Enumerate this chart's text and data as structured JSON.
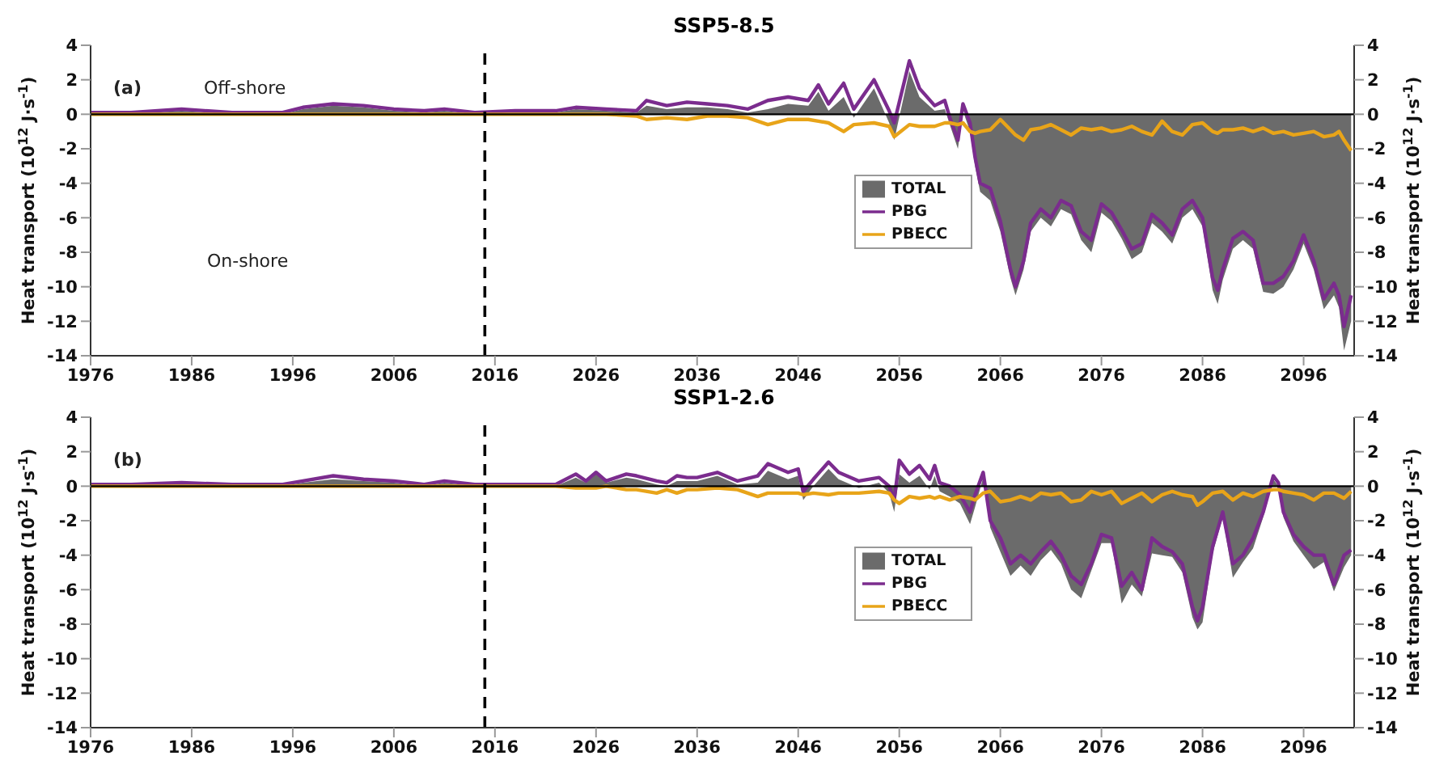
{
  "chart_data": [
    {
      "type": "line",
      "title": "SSP5-8.5",
      "ylabel": "Heat transport (10$^{12}$ J·s$^{-1}$)",
      "y2label": "Heat transport (10$^{12}$ J·s$^{-1}$)",
      "annotations": [
        "(a)",
        "Off-shore",
        "On-shore"
      ],
      "legend": "center",
      "x": [
        1976,
        1980,
        1985,
        1990,
        1995,
        1997,
        2000,
        2003,
        2006,
        2009,
        2011,
        2014,
        2018,
        2022,
        2024,
        2027,
        2030,
        2031,
        2033,
        2035,
        2037,
        2039,
        2041,
        2043,
        2045,
        2047,
        2048,
        2049,
        2050.5,
        2051.5,
        2053.5,
        2055,
        2055.5,
        2057,
        2058,
        2059.5,
        2060.5,
        2061,
        2061.8,
        2062.3,
        2063,
        2063.5,
        2064,
        2065,
        2066,
        2067,
        2067.5,
        2068.3,
        2069,
        2070,
        2071,
        2072,
        2073,
        2074,
        2075,
        2076,
        2077,
        2078,
        2079,
        2080,
        2081,
        2082,
        2083,
        2084,
        2085,
        2086,
        2087,
        2087.5,
        2088,
        2089,
        2090,
        2091,
        2092,
        2093,
        2094,
        2095,
        2096,
        2097,
        2098,
        2099,
        2099.5,
        2100,
        2100.7
      ],
      "series": [
        {
          "name": "TOTAL",
          "type": "area",
          "color": "#6b6b6b",
          "values": [
            0,
            0,
            0.2,
            0,
            0,
            0.3,
            0.5,
            0.4,
            0.2,
            0.1,
            0.2,
            0,
            0.1,
            0.1,
            0.3,
            0.2,
            0.1,
            0.5,
            0.3,
            0.4,
            0.4,
            0.3,
            0.1,
            0.3,
            0.6,
            0.5,
            1.3,
            0.2,
            1.0,
            -0.2,
            1.5,
            -0.5,
            -1.5,
            2.5,
            1.0,
            0.2,
            0.3,
            -0.6,
            -2.0,
            0.2,
            -1.0,
            -3.0,
            -4.5,
            -5.0,
            -6.8,
            -9.5,
            -10.5,
            -9.0,
            -6.8,
            -6.0,
            -6.5,
            -5.5,
            -5.8,
            -7.3,
            -8.0,
            -5.7,
            -6.2,
            -7.2,
            -8.4,
            -8.0,
            -6.3,
            -6.8,
            -7.5,
            -6.0,
            -5.5,
            -6.5,
            -10.2,
            -11.0,
            -9.6,
            -7.8,
            -7.3,
            -7.8,
            -10.3,
            -10.4,
            -10.0,
            -9.0,
            -7.5,
            -9.0,
            -11.3,
            -10.5,
            -11.2,
            -13.7,
            -12.0
          ]
        },
        {
          "name": "PBG",
          "color": "#7b2c8e",
          "values": [
            0.1,
            0.1,
            0.3,
            0.1,
            0.1,
            0.4,
            0.6,
            0.5,
            0.3,
            0.2,
            0.3,
            0.1,
            0.2,
            0.2,
            0.4,
            0.3,
            0.2,
            0.8,
            0.5,
            0.7,
            0.6,
            0.5,
            0.3,
            0.8,
            1.0,
            0.8,
            1.7,
            0.6,
            1.8,
            0.3,
            2.0,
            0.2,
            -0.5,
            3.1,
            1.5,
            0.5,
            0.8,
            -0.2,
            -1.5,
            0.6,
            -0.5,
            -2.5,
            -4.0,
            -4.3,
            -6.2,
            -9.0,
            -10.0,
            -8.5,
            -6.3,
            -5.5,
            -6.0,
            -5.0,
            -5.3,
            -6.8,
            -7.3,
            -5.2,
            -5.7,
            -6.7,
            -7.8,
            -7.5,
            -5.8,
            -6.3,
            -7.0,
            -5.5,
            -5.0,
            -6.0,
            -9.5,
            -10.2,
            -9.0,
            -7.2,
            -6.8,
            -7.3,
            -9.8,
            -9.8,
            -9.4,
            -8.5,
            -7.0,
            -8.5,
            -10.7,
            -9.8,
            -10.5,
            -12.3,
            -10.5
          ]
        },
        {
          "name": "PBECC",
          "color": "#e8a419",
          "values": [
            0,
            0,
            0,
            0,
            0,
            0,
            0,
            0,
            0,
            0,
            0,
            0,
            0,
            0,
            0,
            0,
            -0.1,
            -0.3,
            -0.2,
            -0.3,
            -0.1,
            -0.1,
            -0.2,
            -0.6,
            -0.3,
            -0.3,
            -0.4,
            -0.5,
            -1.0,
            -0.6,
            -0.5,
            -0.7,
            -1.3,
            -0.6,
            -0.7,
            -0.7,
            -0.5,
            -0.5,
            -0.6,
            -0.5,
            -1.0,
            -1.1,
            -1.0,
            -0.9,
            -0.3,
            -0.9,
            -1.2,
            -1.5,
            -0.9,
            -0.8,
            -0.6,
            -0.9,
            -1.2,
            -0.8,
            -0.9,
            -0.8,
            -1.0,
            -0.9,
            -0.7,
            -1.0,
            -1.2,
            -0.4,
            -1.0,
            -1.2,
            -0.6,
            -0.5,
            -1.0,
            -1.1,
            -0.9,
            -0.9,
            -0.8,
            -1.0,
            -0.8,
            -1.1,
            -1.0,
            -1.2,
            -1.1,
            -1.0,
            -1.3,
            -1.2,
            -1.0,
            -1.5,
            -2.1
          ]
        }
      ],
      "xlim": [
        1976,
        2101
      ],
      "xticks": [
        1976,
        1986,
        1996,
        2006,
        2016,
        2026,
        2036,
        2046,
        2056,
        2066,
        2076,
        2086,
        2096
      ],
      "ylim": [
        -14,
        4
      ],
      "yticks": [
        -14,
        -12,
        -10,
        -8,
        -6,
        -4,
        -2,
        0,
        2,
        4
      ],
      "y2lim": [
        -14,
        4
      ],
      "y2ticks": [
        -14,
        -12,
        -10,
        -8,
        -6,
        -4,
        -2,
        0,
        2,
        4
      ],
      "ref_lines": [
        {
          "axis": "x",
          "value": 2015,
          "color": "#000000",
          "line_style": "dashed"
        },
        {
          "axis": "y",
          "value": 0,
          "color": "#000000",
          "line_style": "solid"
        }
      ]
    },
    {
      "type": "line",
      "title": "SSP1-2.6",
      "ylabel": "Heat transport (10$^{12}$ J·s$^{-1}$)",
      "y2label": "Heat transport (10$^{12}$ J·s$^{-1}$)",
      "annotations": [
        "(b)"
      ],
      "legend": "center",
      "x": [
        1976,
        1980,
        1985,
        1990,
        1995,
        1997,
        2000,
        2003,
        2006,
        2009,
        2011,
        2014,
        2018,
        2022,
        2024,
        2025,
        2026,
        2027,
        2029,
        2030,
        2032,
        2033,
        2034,
        2035,
        2036,
        2038,
        2040,
        2042,
        2043,
        2045,
        2046,
        2046.5,
        2047.5,
        2049,
        2050,
        2052,
        2054,
        2055,
        2055.5,
        2056,
        2057,
        2058,
        2059,
        2059.5,
        2060,
        2061,
        2062,
        2063,
        2063.5,
        2064.3,
        2065,
        2066,
        2067,
        2068,
        2069,
        2070,
        2071,
        2072,
        2073,
        2074,
        2075,
        2076,
        2077,
        2078,
        2079,
        2080,
        2081,
        2082,
        2083,
        2084,
        2085,
        2085.5,
        2086,
        2087,
        2088,
        2089,
        2090,
        2091,
        2092,
        2093,
        2093.5,
        2094,
        2095,
        2096,
        2097,
        2098,
        2099,
        2100,
        2100.7
      ],
      "series": [
        {
          "name": "TOTAL",
          "type": "area",
          "color": "#6b6b6b",
          "values": [
            0,
            0,
            0.1,
            0,
            0,
            0.2,
            0.4,
            0.3,
            0.2,
            0,
            0.2,
            0,
            0,
            0,
            0.5,
            0.2,
            0.7,
            0.2,
            0.5,
            0.4,
            0.1,
            0,
            0.3,
            0.3,
            0.3,
            0.6,
            0.1,
            0.2,
            0.9,
            0.4,
            0.6,
            -0.8,
            0,
            1.0,
            0.4,
            -0.1,
            0.2,
            -0.4,
            -1.5,
            0.7,
            0.2,
            0.6,
            -0.2,
            0.6,
            -0.3,
            -0.6,
            -1.0,
            -2.2,
            -1.2,
            0.5,
            -2.4,
            -3.8,
            -5.2,
            -4.6,
            -5.2,
            -4.3,
            -3.7,
            -4.5,
            -6.0,
            -6.5,
            -4.9,
            -3.3,
            -3.3,
            -6.8,
            -5.7,
            -6.4,
            -3.9,
            -4.0,
            -4.1,
            -5.0,
            -7.6,
            -8.3,
            -7.9,
            -3.9,
            -1.8,
            -5.3,
            -4.4,
            -3.6,
            -1.8,
            0.4,
            0,
            -1.8,
            -3.2,
            -4.0,
            -4.8,
            -4.4,
            -6.1,
            -4.7,
            -4.0
          ]
        },
        {
          "name": "PBG",
          "color": "#7b2c8e",
          "values": [
            0.1,
            0.1,
            0.2,
            0.1,
            0.1,
            0.3,
            0.6,
            0.4,
            0.3,
            0.1,
            0.3,
            0.1,
            0.1,
            0.1,
            0.7,
            0.3,
            0.8,
            0.3,
            0.7,
            0.6,
            0.3,
            0.2,
            0.6,
            0.5,
            0.5,
            0.8,
            0.3,
            0.6,
            1.3,
            0.8,
            1.0,
            -0.3,
            0.4,
            1.4,
            0.8,
            0.3,
            0.5,
            0.0,
            -0.8,
            1.5,
            0.7,
            1.2,
            0.4,
            1.2,
            0.2,
            0.0,
            -0.5,
            -1.5,
            -0.5,
            0.8,
            -2.0,
            -3.0,
            -4.5,
            -4.0,
            -4.5,
            -3.8,
            -3.2,
            -4.0,
            -5.2,
            -5.7,
            -4.5,
            -2.8,
            -3.0,
            -5.8,
            -5.0,
            -6.0,
            -3.0,
            -3.5,
            -3.8,
            -4.5,
            -7.0,
            -7.8,
            -7.0,
            -3.5,
            -1.5,
            -4.5,
            -4.0,
            -3.0,
            -1.5,
            0.6,
            0.2,
            -1.5,
            -2.8,
            -3.5,
            -4.0,
            -4.0,
            -5.7,
            -4.0,
            -3.7
          ]
        },
        {
          "name": "PBECC",
          "color": "#e8a419",
          "values": [
            0,
            0,
            0,
            0,
            0,
            0,
            0,
            0,
            0,
            0,
            0,
            0,
            0,
            0,
            -0.1,
            -0.1,
            -0.1,
            0,
            -0.2,
            -0.2,
            -0.4,
            -0.2,
            -0.4,
            -0.2,
            -0.2,
            -0.1,
            -0.2,
            -0.6,
            -0.4,
            -0.4,
            -0.4,
            -0.5,
            -0.4,
            -0.5,
            -0.4,
            -0.4,
            -0.3,
            -0.4,
            -0.8,
            -1.0,
            -0.6,
            -0.7,
            -0.6,
            -0.7,
            -0.6,
            -0.8,
            -0.6,
            -0.7,
            -0.8,
            -0.4,
            -0.3,
            -0.9,
            -0.8,
            -0.6,
            -0.8,
            -0.4,
            -0.5,
            -0.4,
            -0.9,
            -0.8,
            -0.3,
            -0.5,
            -0.3,
            -1.0,
            -0.7,
            -0.4,
            -0.9,
            -0.5,
            -0.3,
            -0.5,
            -0.6,
            -1.1,
            -0.9,
            -0.4,
            -0.3,
            -0.8,
            -0.4,
            -0.6,
            -0.3,
            -0.2,
            -0.2,
            -0.3,
            -0.4,
            -0.5,
            -0.8,
            -0.4,
            -0.4,
            -0.7,
            -0.3
          ]
        }
      ],
      "xlim": [
        1976,
        2101
      ],
      "xticks": [
        1976,
        1986,
        1996,
        2006,
        2016,
        2026,
        2036,
        2046,
        2056,
        2066,
        2076,
        2086,
        2096
      ],
      "ylim": [
        -14,
        4
      ],
      "yticks": [
        -14,
        -12,
        -10,
        -8,
        -6,
        -4,
        -2,
        0,
        2,
        4
      ],
      "y2lim": [
        -14,
        4
      ],
      "y2ticks": [
        -14,
        -12,
        -10,
        -8,
        -6,
        -4,
        -2,
        0,
        2,
        4
      ],
      "ref_lines": [
        {
          "axis": "x",
          "value": 2015,
          "color": "#000000",
          "line_style": "dashed"
        },
        {
          "axis": "y",
          "value": 0,
          "color": "#000000",
          "line_style": "solid"
        }
      ]
    }
  ]
}
